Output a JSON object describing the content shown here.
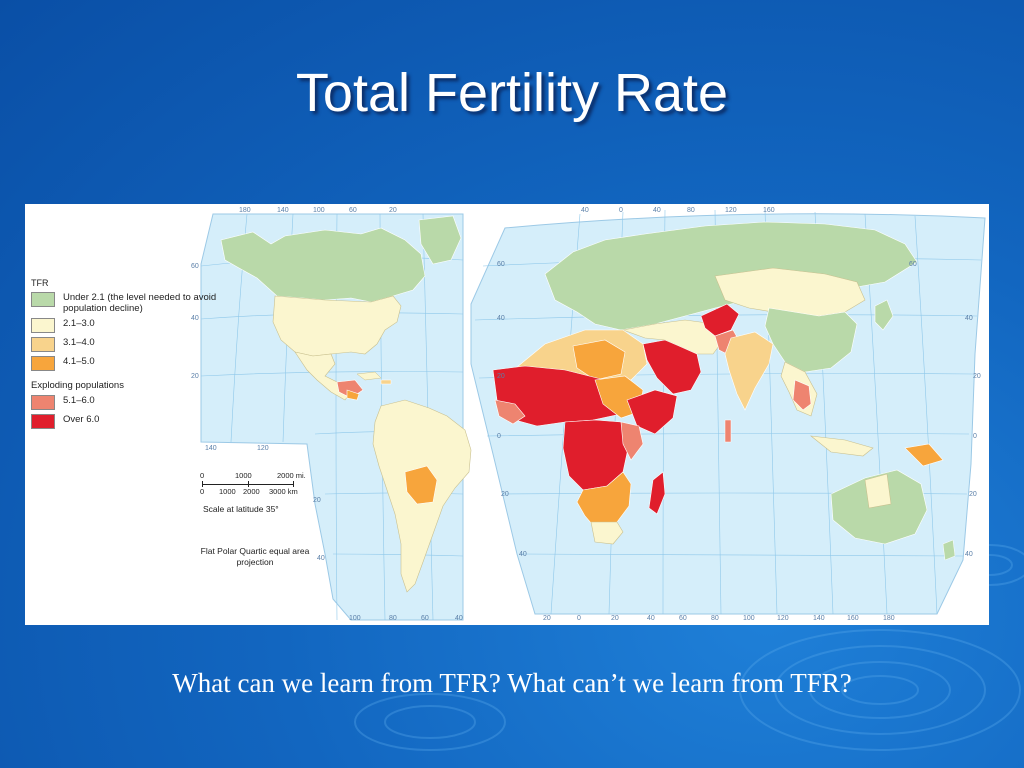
{
  "slide": {
    "title": "Total Fertility Rate",
    "question": "What can we learn from TFR?  What can’t we learn from TFR?"
  },
  "map": {
    "legend": {
      "heading": "TFR",
      "sub_heading": "Exploding populations",
      "items": [
        {
          "label": "Under 2.1 (the level needed to avoid population decline)",
          "color": "#b9d9a9"
        },
        {
          "label": "2.1–3.0",
          "color": "#fbf6cf"
        },
        {
          "label": "3.1–4.0",
          "color": "#f8d38c"
        },
        {
          "label": "4.1–5.0",
          "color": "#f7a53c"
        },
        {
          "label": "5.1–6.0",
          "color": "#ee8470"
        },
        {
          "label": "Over 6.0",
          "color": "#e01e2c"
        }
      ]
    },
    "scale": {
      "miles_labels": [
        "0",
        "1000",
        "2000 mi."
      ],
      "km_labels": [
        "0",
        "1000",
        "2000",
        "3000 km"
      ],
      "note": "Scale at latitude 35°"
    },
    "projection": "Flat Polar Quartic equal area projection",
    "ticks": {
      "americas_top": [
        "180",
        "140",
        "100",
        "60",
        "20"
      ],
      "americas_bottom": [
        "100",
        "80",
        "60",
        "40"
      ],
      "americas_left": [
        "60",
        "40",
        "20"
      ],
      "americas_inner": [
        "140",
        "120"
      ],
      "americas_right": [
        "20",
        "40"
      ],
      "world_top": [
        "40",
        "0",
        "40",
        "80",
        "120",
        "160"
      ],
      "world_bottom": [
        "20",
        "0",
        "20",
        "40",
        "60",
        "80",
        "100",
        "120",
        "140",
        "160",
        "180"
      ],
      "world_left": [
        "60",
        "40",
        "20",
        "0",
        "20",
        "40"
      ],
      "world_right": [
        "60",
        "40",
        "20",
        "0",
        "20",
        "40"
      ]
    },
    "ocean_color": "#d5eefa",
    "grid_color": "#8fc8ea"
  }
}
